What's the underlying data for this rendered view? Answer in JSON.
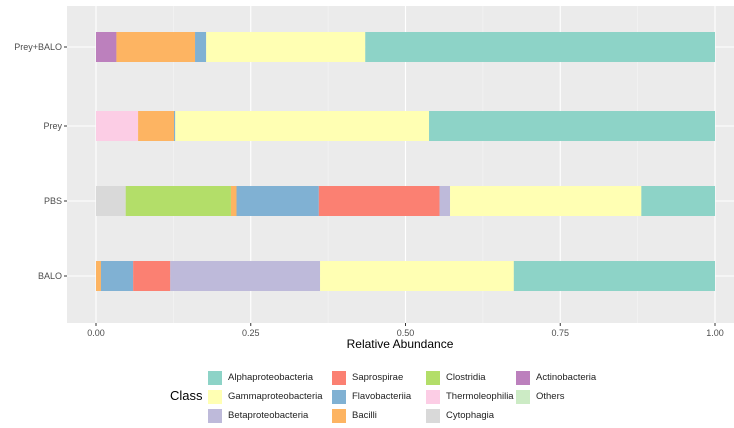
{
  "chart_data": {
    "type": "bar",
    "orientation": "horizontal",
    "stacked": true,
    "xlabel": "Relative Abundance",
    "ylabel": "",
    "xlim": [
      0,
      1
    ],
    "xticks": [
      0.0,
      0.25,
      0.5,
      0.75,
      1.0
    ],
    "xtick_labels": [
      "0.00",
      "0.25",
      "0.50",
      "0.75",
      "1.00"
    ],
    "categories": [
      "Prey+BALO",
      "Prey",
      "PBS",
      "BALO"
    ],
    "legend_title": "Class",
    "legend_position": "bottom",
    "grid": true,
    "series": [
      {
        "name": "Actinobacteria",
        "color": "#BC80BD",
        "values": [
          0.033,
          0.0,
          0.0,
          0.0
        ]
      },
      {
        "name": "Bacilli",
        "color": "#FDB462",
        "values": [
          0.127,
          0.058,
          0.009,
          0.008
        ]
      },
      {
        "name": "Flavobacteriia",
        "color": "#80B1D3",
        "values": [
          0.018,
          0.002,
          0.133,
          0.052
        ]
      },
      {
        "name": "Gammaproteobacteria",
        "color": "#FFFFB3",
        "values": [
          0.257,
          0.41,
          0.309,
          0.313
        ]
      },
      {
        "name": "Alphaproteobacteria",
        "color": "#8DD3C7",
        "values": [
          0.565,
          0.462,
          0.119,
          0.325
        ]
      },
      {
        "name": "Thermoleophilia",
        "color": "#FCCDE5",
        "values": [
          0.0,
          0.068,
          0.0,
          0.0
        ]
      },
      {
        "name": "Cytophagia",
        "color": "#D9D9D9",
        "values": [
          0.0,
          0.0,
          0.048,
          0.0
        ]
      },
      {
        "name": "Clostridia",
        "color": "#B3DE69",
        "values": [
          0.0,
          0.0,
          0.17,
          0.0
        ]
      },
      {
        "name": "Saprospirae",
        "color": "#FB8072",
        "values": [
          0.0,
          0.0,
          0.195,
          0.06
        ]
      },
      {
        "name": "Betaproteobacteria",
        "color": "#BEBADA",
        "values": [
          0.0,
          0.0,
          0.017,
          0.242
        ]
      },
      {
        "name": "Others",
        "color": "#CCEBC5",
        "values": [
          0.0,
          0.0,
          0.0,
          0.0
        ]
      }
    ],
    "stack_order": {
      "Prey+BALO": [
        "Actinobacteria",
        "Bacilli",
        "Flavobacteriia",
        "Gammaproteobacteria",
        "Alphaproteobacteria"
      ],
      "Prey": [
        "Thermoleophilia",
        "Bacilli",
        "Flavobacteriia",
        "Gammaproteobacteria",
        "Alphaproteobacteria"
      ],
      "PBS": [
        "Cytophagia",
        "Clostridia",
        "Bacilli",
        "Flavobacteriia",
        "Saprospirae",
        "Betaproteobacteria",
        "Gammaproteobacteria",
        "Alphaproteobacteria"
      ],
      "BALO": [
        "Bacilli",
        "Flavobacteriia",
        "Saprospirae",
        "Betaproteobacteria",
        "Gammaproteobacteria",
        "Alphaproteobacteria"
      ]
    }
  },
  "legend": {
    "title": "Class",
    "items": [
      {
        "name": "Alphaproteobacteria",
        "color": "#8DD3C7"
      },
      {
        "name": "Saprospirae",
        "color": "#FB8072"
      },
      {
        "name": "Clostridia",
        "color": "#B3DE69"
      },
      {
        "name": "Actinobacteria",
        "color": "#BC80BD"
      },
      {
        "name": "Gammaproteobacteria",
        "color": "#FFFFB3"
      },
      {
        "name": "Flavobacteriia",
        "color": "#80B1D3"
      },
      {
        "name": "Thermoleophilia",
        "color": "#FCCDE5"
      },
      {
        "name": "Others",
        "color": "#CCEBC5"
      },
      {
        "name": "Betaproteobacteria",
        "color": "#BEBADA"
      },
      {
        "name": "Bacilli",
        "color": "#FDB462"
      },
      {
        "name": "Cytophagia",
        "color": "#D9D9D9"
      },
      {
        "name": "",
        "color": ""
      }
    ]
  }
}
